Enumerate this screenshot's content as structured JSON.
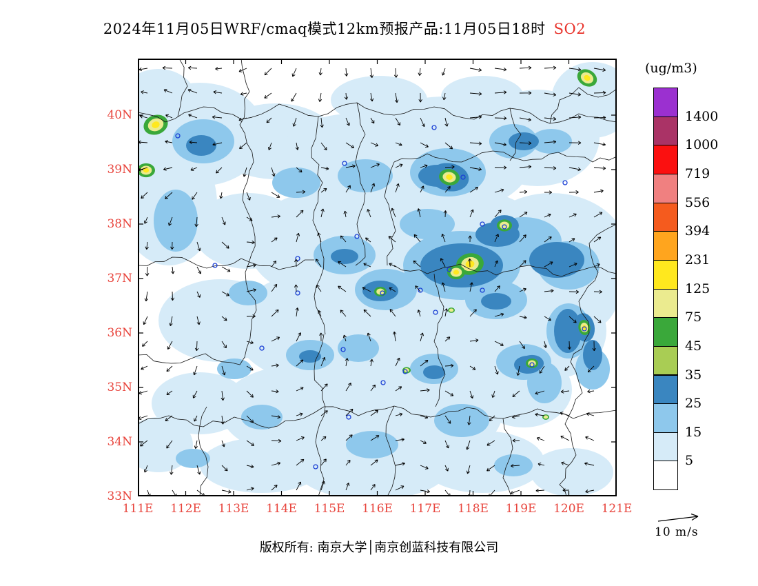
{
  "title": {
    "main": "2024年11月05日WRF/cmaq模式12km预报产品:11月05日18时",
    "species": "SO2"
  },
  "axes": {
    "x_ticks": [
      "111E",
      "112E",
      "113E",
      "114E",
      "115E",
      "116E",
      "117E",
      "118E",
      "119E",
      "120E",
      "121E"
    ],
    "y_ticks": [
      "40N",
      "39N",
      "38N",
      "37N",
      "36N",
      "35N",
      "34N",
      "33N"
    ],
    "tick_color": "#e8443c"
  },
  "colorbar": {
    "unit": "(ug/m3)",
    "tick_labels": [
      "1400",
      "1000",
      "719",
      "556",
      "394",
      "231",
      "125",
      "75",
      "45",
      "35",
      "25",
      "15",
      "5"
    ],
    "colors_top_to_bottom": [
      "#9b30d0",
      "#aa3366",
      "#fb1010",
      "#f08080",
      "#f55b1e",
      "#ffa51e",
      "#ffe81e",
      "#ebeb8f",
      "#3aa83a",
      "#a9cd54",
      "#3a86c0",
      "#8ec8ec",
      "#d6ebf8",
      "#ffffff"
    ]
  },
  "wind_legend": {
    "label": "10 m/s"
  },
  "footer": {
    "text": "版权所有: 南京大学│南京创蓝科技有限公司"
  },
  "chart_data": {
    "type": "heatmap",
    "title": "2024年11月05日WRF/cmaq模式12km预报产品:11月05日18时 SO2",
    "units": "ug/m3",
    "x_range": [
      "111E",
      "121E"
    ],
    "y_range": [
      "33N",
      "40N"
    ],
    "scale_breaks": [
      5,
      15,
      25,
      35,
      45,
      75,
      125,
      231,
      394,
      556,
      719,
      1000,
      1400
    ],
    "legend_position": "right",
    "overlay": "wind vectors, reference arrow 10 m/s"
  }
}
